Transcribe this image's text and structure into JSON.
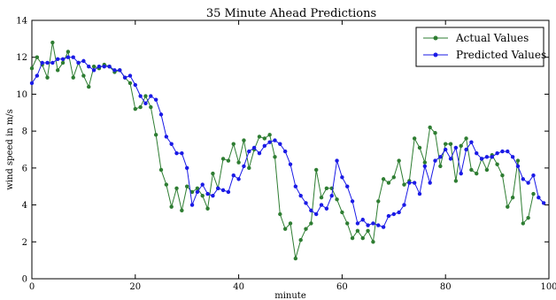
{
  "chart_data": {
    "type": "line",
    "title": "35 Minute Ahead Predictions",
    "xlabel": "minute",
    "ylabel": "wind speed in m/s",
    "xlim": [
      0,
      100
    ],
    "ylim": [
      0,
      14
    ],
    "xticks": [
      "0",
      "20",
      "40",
      "60",
      "80",
      "100"
    ],
    "yticks": [
      "0",
      "2",
      "4",
      "6",
      "8",
      "10",
      "12",
      "14"
    ],
    "grid": false,
    "legend_position": "top-right",
    "series": [
      {
        "name": "Actual Values",
        "color": "#2e7d32",
        "values": [
          11.4,
          12.0,
          11.6,
          10.9,
          12.8,
          11.3,
          11.7,
          12.3,
          10.9,
          11.7,
          11.0,
          10.4,
          11.5,
          11.4,
          11.6,
          11.5,
          11.2,
          11.3,
          10.9,
          10.6,
          9.2,
          9.3,
          9.9,
          9.3,
          7.8,
          5.9,
          5.1,
          3.9,
          4.9,
          3.7,
          5.0,
          4.7,
          4.9,
          4.5,
          3.8,
          5.7,
          4.9,
          6.5,
          6.4,
          7.3,
          6.3,
          7.5,
          6.0,
          7.0,
          7.7,
          7.6,
          7.8,
          6.6,
          3.5,
          2.7,
          3.0,
          1.1,
          2.1,
          2.7,
          3.0,
          5.9,
          4.4,
          4.9,
          4.9,
          4.3,
          3.6,
          3.0,
          2.2,
          2.6,
          2.2,
          2.6,
          2.0,
          4.2,
          5.4,
          5.2,
          5.5,
          6.4,
          5.1,
          5.3,
          7.6,
          7.1,
          6.3,
          8.2,
          7.9,
          6.1,
          7.3,
          7.3,
          5.3,
          7.2,
          7.6,
          5.9,
          5.7,
          6.5,
          5.9,
          6.7,
          6.2,
          5.6,
          3.9,
          4.4,
          6.4,
          3.0,
          3.3,
          4.6
        ]
      },
      {
        "name": "Predicted Values",
        "color": "#1a1ae6",
        "values": [
          10.6,
          11.0,
          11.7,
          11.7,
          11.7,
          11.9,
          11.9,
          12.0,
          12.0,
          11.7,
          11.8,
          11.5,
          11.3,
          11.5,
          11.5,
          11.5,
          11.3,
          11.3,
          10.9,
          11.0,
          10.5,
          9.9,
          9.5,
          9.9,
          9.7,
          8.9,
          7.7,
          7.3,
          6.8,
          6.8,
          6.0,
          4.0,
          4.7,
          5.1,
          4.6,
          4.5,
          4.9,
          4.8,
          4.7,
          5.6,
          5.4,
          6.1,
          6.9,
          7.1,
          6.8,
          7.2,
          7.4,
          7.5,
          7.3,
          6.9,
          6.2,
          5.0,
          4.5,
          4.1,
          3.7,
          3.5,
          4.0,
          3.8,
          4.5,
          6.4,
          5.5,
          5.0,
          4.2,
          3.0,
          3.2,
          2.9,
          3.0,
          2.9,
          2.8,
          3.4,
          3.5,
          3.6,
          4.0,
          5.2,
          5.2,
          4.6,
          6.1,
          5.2,
          6.4,
          6.6,
          7.0,
          6.5,
          7.1,
          5.7,
          7.0,
          7.4,
          6.8,
          6.5,
          6.6,
          6.6,
          6.8,
          6.9,
          6.9,
          6.6,
          6.1,
          5.4,
          5.2,
          5.6,
          4.4,
          4.1
        ]
      }
    ]
  }
}
